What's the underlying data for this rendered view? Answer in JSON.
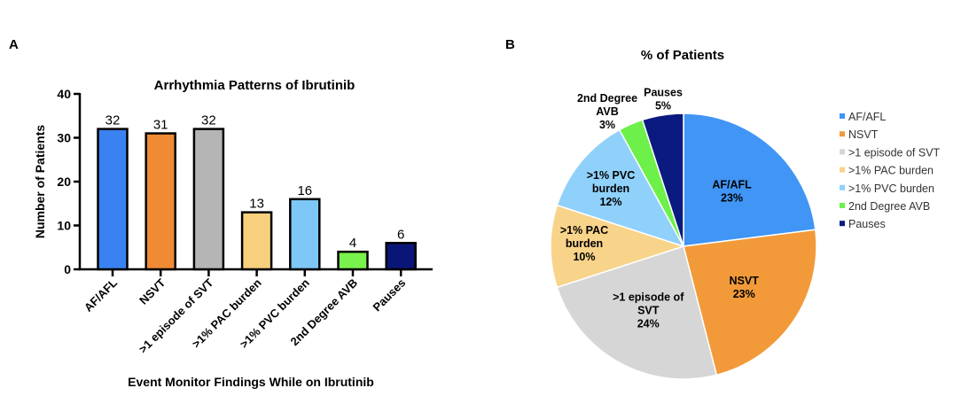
{
  "chart_data": [
    {
      "panel_label": "A",
      "type": "bar",
      "title": "Arrhythmia Patterns of Ibrutinib",
      "xlabel": "Event Monitor Findings While on Ibrutinib",
      "ylabel": "Number of Patients",
      "ylim": [
        0,
        40
      ],
      "yticks": [
        0,
        10,
        20,
        30,
        40
      ],
      "categories": [
        "AF/AFL",
        "NSVT",
        ">1 episode of SVT",
        ">1% PAC burden",
        ">1% PVC burden",
        "2nd Degree AVB",
        "Pauses"
      ],
      "values": [
        32,
        31,
        32,
        13,
        16,
        4,
        6
      ],
      "colors": [
        "#3a82f2",
        "#f08a35",
        "#b5b5b5",
        "#f7d07e",
        "#7ec8f7",
        "#7af24d",
        "#0a1677"
      ],
      "grid": false
    },
    {
      "panel_label": "B",
      "type": "pie",
      "title": "% of Patients",
      "categories": [
        "AF/AFL",
        "NSVT",
        ">1 episode of SVT",
        ">1% PAC burden",
        ">1% PVC burden",
        "2nd Degree AVB",
        "Pauses"
      ],
      "slice_labels": [
        [
          "AF/AFL"
        ],
        [
          "NSVT"
        ],
        [
          ">1 episode of",
          "SVT"
        ],
        [
          ">1% PAC",
          "burden"
        ],
        [
          ">1% PVC",
          "burden"
        ],
        [
          "2nd Degree",
          "AVB"
        ],
        [
          "Pauses"
        ]
      ],
      "values": [
        23,
        23,
        24,
        10,
        12,
        3,
        5
      ],
      "value_labels": [
        "23%",
        "23%",
        "24%",
        "10%",
        "12%",
        "3%",
        "5%"
      ],
      "colors": [
        "#4095f5",
        "#f29a3a",
        "#d6d6d6",
        "#f8d38a",
        "#8fd1fa",
        "#6df04a",
        "#0b1a80"
      ],
      "legend_position": "right"
    }
  ]
}
